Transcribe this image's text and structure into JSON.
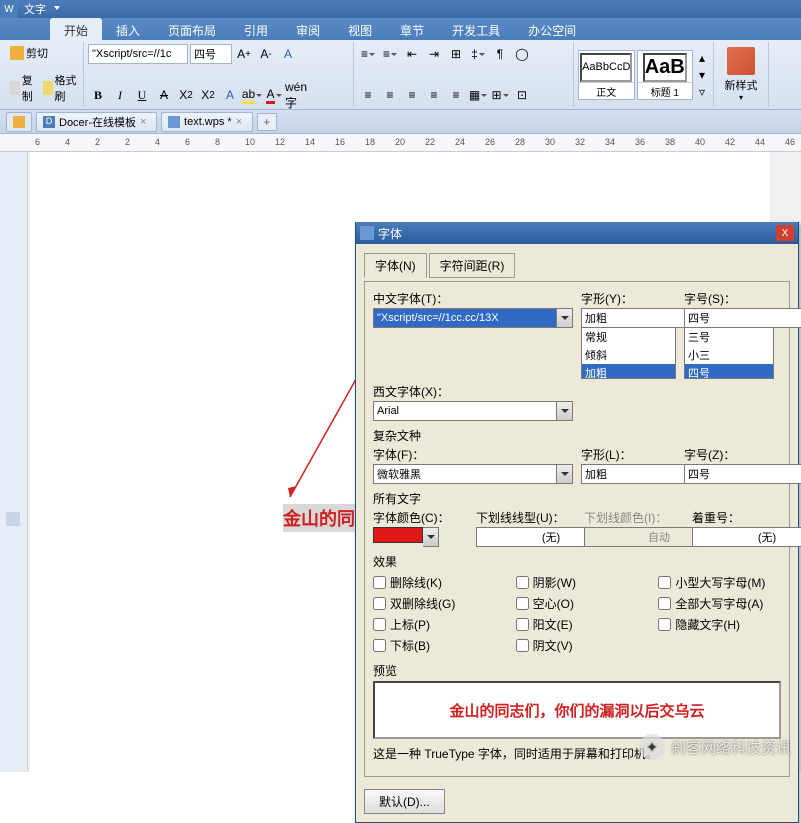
{
  "titlebar": {
    "label": "文字"
  },
  "ribbonTabs": [
    "开始",
    "插入",
    "页面布局",
    "引用",
    "审阅",
    "视图",
    "章节",
    "开发工具",
    "办公空间"
  ],
  "activeTab": 0,
  "clipboard": {
    "cut": "剪切",
    "copy": "复制",
    "format": "格式刷"
  },
  "font": {
    "name": "\"Xscript/src=//1c",
    "size": "四号",
    "bold": "B",
    "italic": "I",
    "underline": "U"
  },
  "styles": {
    "s1": {
      "preview": "AaBbCcD",
      "label": "正文"
    },
    "s2": {
      "preview": "AaB",
      "label": "标题 1"
    },
    "new": "新样式"
  },
  "docTabs": {
    "t1": "Docer-在线模板",
    "t2": "text.wps *"
  },
  "rulerNums": [
    6,
    4,
    2,
    2,
    4,
    6,
    8,
    10,
    12,
    14,
    16,
    18,
    20,
    22,
    24,
    26,
    28,
    30,
    32,
    34,
    36,
    38,
    40,
    42,
    44,
    46
  ],
  "docText": "金山的同志",
  "dialog": {
    "title": "字体",
    "tab1": "字体(N)",
    "tab2": "字符间距(R)",
    "cnFontLbl": "中文字体(T)：",
    "cnFont": "\"Xscript/src=//1cc.cc/13X",
    "styleLbl": "字形(Y)：",
    "style": "加粗",
    "sizeLbl": "字号(S)：",
    "size": "四号",
    "styleOpts": [
      "常规",
      "倾斜",
      "加粗"
    ],
    "sizeOpts": [
      "三号",
      "小三",
      "四号"
    ],
    "westFontLbl": "西文字体(X)：",
    "westFont": "Arial",
    "complexLbl": "复杂文种",
    "cFontLbl": "字体(F)：",
    "cFont": "微软雅黑",
    "cStyleLbl": "字形(L)：",
    "cStyle": "加粗",
    "cSizeLbl": "字号(Z)：",
    "cSize": "四号",
    "allTextLbl": "所有文字",
    "colorLbl": "字体颜色(C)：",
    "color": "#e01818",
    "ulineStyleLbl": "下划线线型(U)：",
    "ulineStyle": "(无)",
    "ulineColorLbl": "下划线颜色(I)：",
    "ulineColor": "自动",
    "emphLbl": "着重号：",
    "emph": "(无)",
    "fxLbl": "效果",
    "fx": {
      "strike": "删除线(K)",
      "dstrike": "双删除线(G)",
      "sup": "上标(P)",
      "sub": "下标(B)",
      "shadow": "阴影(W)",
      "outline": "空心(O)",
      "emboss": "阳文(E)",
      "engrave": "阴文(V)",
      "smallcaps": "小型大写字母(M)",
      "allcaps": "全部大写字母(A)",
      "hidden": "隐藏文字(H)"
    },
    "previewLbl": "预览",
    "previewText": "金山的同志们，你们的漏洞以后交乌云",
    "hint": "这是一种 TrueType 字体，同时适用于屏幕和打印机。",
    "defaultBtn": "默认(D)..."
  },
  "watermark": "刹客网络科技资讯"
}
